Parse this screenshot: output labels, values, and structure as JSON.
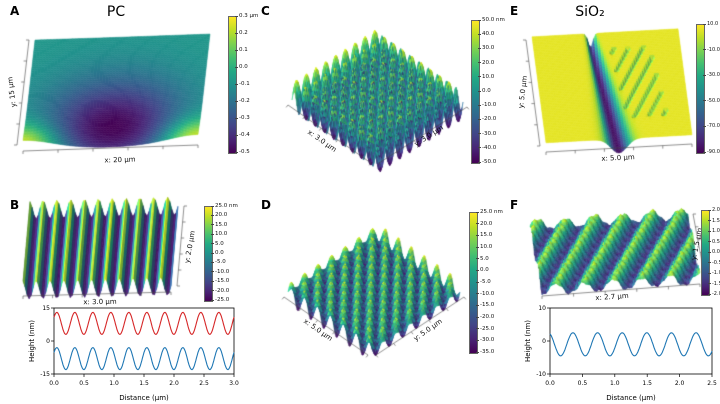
{
  "colors": {
    "background": "#ffffff",
    "profile_red": "#d62728",
    "profile_blue": "#1f77b4",
    "viridis_stops": [
      "#440154",
      "#482475",
      "#414487",
      "#355f8d",
      "#2a788e",
      "#21918c",
      "#22a884",
      "#44bf70",
      "#7ad151",
      "#bddf26",
      "#fde725"
    ]
  },
  "chart_data": [
    {
      "panel": "A",
      "letter": "A",
      "type": "surface3d",
      "title": "PC",
      "x_label": "x: 20 µm",
      "y_label": "y: 15 µm",
      "x_size_um": 20,
      "y_size_um": 15,
      "z_unit": "µm",
      "colorbar_ticks": [
        "0.3 µm",
        "0.2",
        "0.1",
        "0.0",
        "-0.1",
        "-0.2",
        "-0.3",
        "-0.4",
        "-0.5"
      ],
      "surface_pattern": "central-depression",
      "description": "Polycarbonate (PC) surface, broad central depression ~0.5 µm deep with raised bright front corners"
    },
    {
      "panel": "B",
      "letter": "B",
      "type": "surface3d",
      "title": "",
      "x_label": "x: 3.0 µm",
      "y_label": "y: 2.0 µm",
      "x_size_um": 3.0,
      "y_size_um": 2.0,
      "z_unit": "nm",
      "colorbar_ticks": [
        "25.0 nm",
        "20.0",
        "15.0",
        "10.0",
        "5.0",
        "0.0",
        "-5.0",
        "-10.0",
        "-15.0",
        "-20.0",
        "-25.0"
      ],
      "surface_pattern": "linear-grating",
      "description": "Sinusoidal line grating, about 11 ridges across 3 µm, amplitude ±25 nm"
    },
    {
      "panel": "C",
      "letter": "C",
      "type": "surface3d",
      "title": "",
      "x_label": "x: 3.0 µm",
      "y_label": "y: 3.0 µm",
      "x_size_um": 3.0,
      "y_size_um": 3.0,
      "z_unit": "nm",
      "colorbar_ticks": [
        "50.0 nm",
        "40.0",
        "30.0",
        "20.0",
        "10.0",
        "0.0",
        "-10.0",
        "-20.0",
        "-30.0",
        "-40.0",
        "-50.0"
      ],
      "surface_pattern": "dot-array",
      "description": "Square array of sharp bumps, ~9 periods per side, ±50 nm"
    },
    {
      "panel": "D",
      "letter": "D",
      "type": "surface3d",
      "title": "",
      "x_label": "x: 5.0 µm",
      "y_label": "y: 5.0 µm",
      "x_size_um": 5.0,
      "y_size_um": 5.0,
      "z_unit": "nm",
      "colorbar_ticks": [
        "25.0 nm",
        "20.0",
        "15.0",
        "10.0",
        "5.0",
        "0.0",
        "-5.0",
        "-10.0",
        "-15.0",
        "-20.0",
        "-25.0",
        "-30.0",
        "-35.0"
      ],
      "surface_pattern": "crosshatch",
      "description": "Crossed diagonal gratings forming a woven diamond texture"
    },
    {
      "panel": "E",
      "letter": "E",
      "type": "surface3d",
      "title": "SiO₂",
      "x_label": "x: 5.0 µm",
      "y_label": "y: 5.0 µm",
      "x_size_um": 5.0,
      "y_size_um": 5.0,
      "z_unit": "nm",
      "colorbar_ticks": [
        "10.0 nm",
        "-10.0",
        "-30.0",
        "-50.0",
        "-70.0",
        "-90.0"
      ],
      "surface_pattern": "trench",
      "description": "Flat SiO₂ surface with a deep V-shaped trench (~90 nm) widening toward front, fine diagonal grooves beside it"
    },
    {
      "panel": "F",
      "letter": "F",
      "type": "surface3d",
      "title": "",
      "x_label": "x: 2.7 µm",
      "y_label": "y: 1.5 µm",
      "x_size_um": 2.7,
      "y_size_um": 1.5,
      "z_unit": "nm",
      "colorbar_ticks": [
        "2.0 nm",
        "1.5",
        "1.0",
        "0.5",
        "0.0",
        "-0.5",
        "-1.0",
        "-1.5",
        "-2.0"
      ],
      "surface_pattern": "diagonal-ripples",
      "description": "Diagonal ripple pattern with granular surface texture"
    },
    {
      "panel": "B",
      "type": "line-profile",
      "xlabel": "Distance (µm)",
      "ylabel": "Height (nm)",
      "x_range": [
        0,
        3.0
      ],
      "y_range": [
        -15,
        15
      ],
      "x_ticks": [
        0,
        0.5,
        1,
        1.5,
        2,
        2.5,
        3
      ],
      "y_ticks": [
        15,
        0,
        -15
      ],
      "series": [
        {
          "name": "red profile",
          "color": "#d62728",
          "mean_nm": 8,
          "amplitude_nm": 5,
          "period_um": 0.3,
          "phase": 0.6
        },
        {
          "name": "blue profile",
          "color": "#1f77b4",
          "mean_nm": -8,
          "amplitude_nm": 5,
          "period_um": 0.3,
          "phase": 0.6
        }
      ]
    },
    {
      "panel": "F",
      "type": "line-profile",
      "xlabel": "Distance (µm)",
      "ylabel": "Height (nm)",
      "x_range": [
        0,
        2.5
      ],
      "y_range": [
        -10,
        10
      ],
      "x_ticks": [
        0,
        0.5,
        1,
        1.5,
        2,
        2.5
      ],
      "y_ticks": [
        10,
        0,
        -10
      ],
      "series": [
        {
          "name": "blue profile",
          "color": "#1f77b4",
          "mean_nm": -1,
          "amplitude_nm": 3.5,
          "period_um": 0.38,
          "phase": 2.0
        }
      ]
    }
  ]
}
